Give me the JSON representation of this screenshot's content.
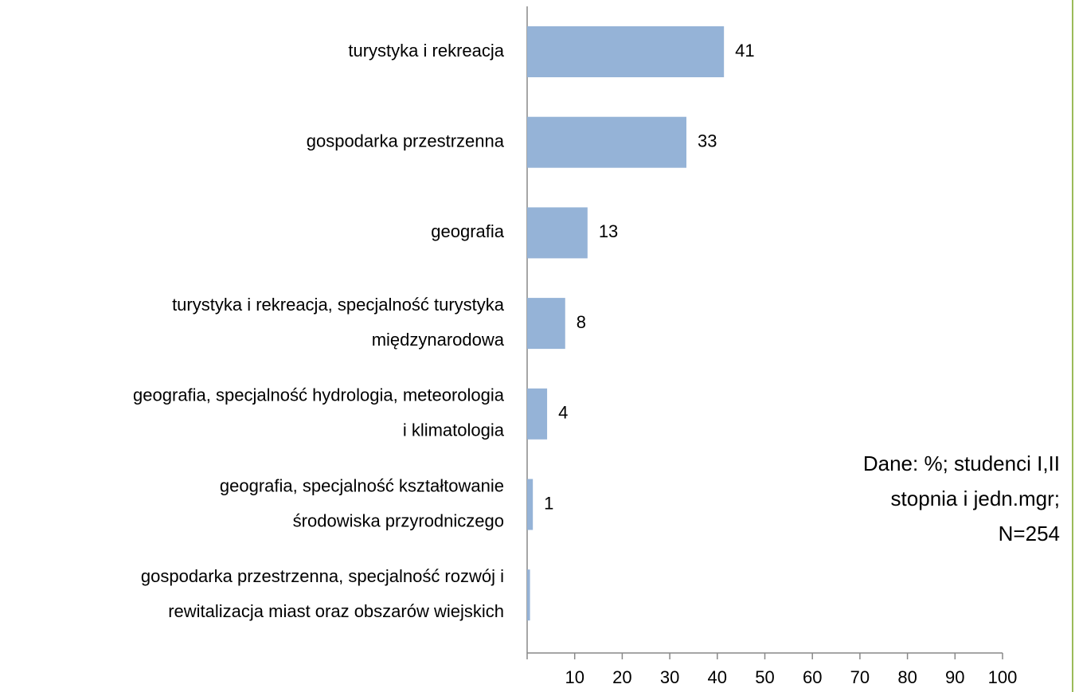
{
  "chart_data": {
    "type": "barh",
    "categories": [
      [
        "turystyka i rekreacja"
      ],
      [
        "gospodarka przestrzenna"
      ],
      [
        "geografia"
      ],
      [
        "turystyka i rekreacja, specjalność turystyka",
        "międzynarodowa"
      ],
      [
        "geografia, specjalność hydrologia, meteorologia",
        "i klimatologia"
      ],
      [
        "geografia, specjalność kształtowanie",
        "środowiska przyrodniczego"
      ],
      [
        "gospodarka przestrzenna, specjalność rozwój i",
        "rewitalizacja miast oraz obszarów wiejskich"
      ]
    ],
    "values": [
      41.4,
      33.5,
      12.7,
      8.0,
      4.2,
      1.2,
      0.6
    ],
    "value_labels": [
      "41",
      "33",
      "13",
      "8",
      "4",
      "1",
      null
    ],
    "color": "#95b3d7",
    "xlim": [
      0,
      100
    ],
    "xticks": [
      10,
      20,
      30,
      40,
      50,
      60,
      70,
      80,
      90,
      100
    ],
    "annotation": [
      "Dane: %; studenci I,II",
      "stopnia i jedn.mgr;",
      "N=254"
    ]
  }
}
